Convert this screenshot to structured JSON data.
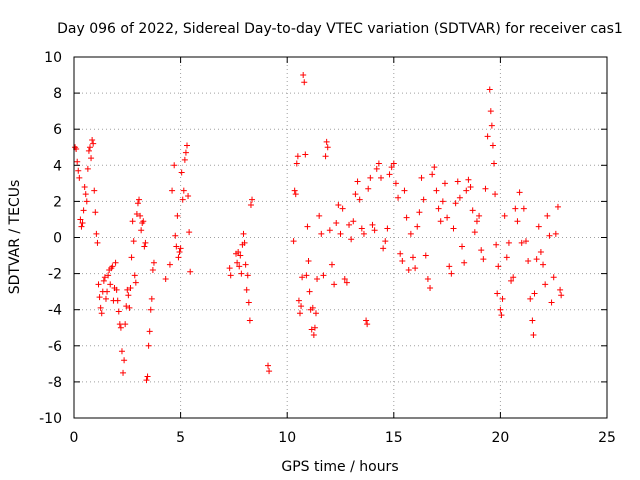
{
  "chart_data": {
    "type": "scatter",
    "title": "Day 096 of 2022, Sidereal Day-to-day VTEC variation (SDTVAR) for receiver cas1",
    "xlabel": "GPS time / hours",
    "ylabel": "SDTVAR / TECUs",
    "xlim": [
      0,
      25
    ],
    "ylim": [
      -10,
      10
    ],
    "xticks": [
      0,
      5,
      10,
      15,
      20,
      25
    ],
    "xtick_labels": [
      "0",
      "5",
      "10",
      "15",
      "20",
      "25"
    ],
    "yticks": [
      -10,
      -8,
      -6,
      -4,
      -2,
      0,
      2,
      4,
      6,
      8,
      10
    ],
    "ytick_labels": [
      "-10",
      "-8",
      "-6",
      "-4",
      "-2",
      "0",
      "2",
      "4",
      "6",
      "8",
      "10"
    ],
    "grid": true,
    "marker": "+",
    "marker_color": "#ff0000",
    "series": [
      {
        "name": "cas1 SDTVAR",
        "points": [
          [
            0.05,
            5.0
          ],
          [
            0.1,
            4.9
          ],
          [
            0.15,
            4.2
          ],
          [
            0.2,
            3.7
          ],
          [
            0.25,
            3.3
          ],
          [
            0.3,
            1.0
          ],
          [
            0.35,
            0.6
          ],
          [
            0.4,
            0.8
          ],
          [
            0.45,
            1.5
          ],
          [
            0.5,
            2.8
          ],
          [
            0.55,
            2.4
          ],
          [
            0.6,
            2.0
          ],
          [
            0.65,
            3.8
          ],
          [
            0.7,
            4.8
          ],
          [
            0.75,
            5.0
          ],
          [
            0.8,
            4.4
          ],
          [
            0.85,
            5.4
          ],
          [
            0.9,
            5.2
          ],
          [
            0.95,
            2.6
          ],
          [
            1.0,
            1.4
          ],
          [
            1.05,
            0.2
          ],
          [
            1.1,
            -0.3
          ],
          [
            1.15,
            -2.6
          ],
          [
            1.2,
            -3.3
          ],
          [
            1.25,
            -3.9
          ],
          [
            1.3,
            -4.2
          ],
          [
            1.35,
            -3.0
          ],
          [
            1.4,
            -2.4
          ],
          [
            1.45,
            -2.2
          ],
          [
            1.5,
            -3.4
          ],
          [
            1.55,
            -3.0
          ],
          [
            1.6,
            -2.1
          ],
          [
            1.65,
            -1.8
          ],
          [
            1.7,
            -2.6
          ],
          [
            1.75,
            -1.7
          ],
          [
            1.8,
            -1.6
          ],
          [
            1.85,
            -3.5
          ],
          [
            1.9,
            -2.8
          ],
          [
            1.95,
            -1.4
          ],
          [
            2.0,
            -2.9
          ],
          [
            2.05,
            -3.5
          ],
          [
            2.1,
            -4.1
          ],
          [
            2.15,
            -4.8
          ],
          [
            2.2,
            -5.0
          ],
          [
            2.25,
            -6.3
          ],
          [
            2.3,
            -7.5
          ],
          [
            2.35,
            -6.8
          ],
          [
            2.4,
            -4.8
          ],
          [
            2.45,
            -3.8
          ],
          [
            2.5,
            -2.9
          ],
          [
            2.55,
            -3.2
          ],
          [
            2.6,
            -3.9
          ],
          [
            2.65,
            -2.8
          ],
          [
            2.7,
            -1.1
          ],
          [
            2.75,
            0.9
          ],
          [
            2.8,
            -0.2
          ],
          [
            2.85,
            -2.1
          ],
          [
            2.9,
            -2.5
          ],
          [
            2.95,
            1.3
          ],
          [
            3.0,
            1.9
          ],
          [
            3.05,
            2.1
          ],
          [
            3.1,
            1.2
          ],
          [
            3.15,
            0.4
          ],
          [
            3.2,
            0.8
          ],
          [
            3.25,
            0.9
          ],
          [
            3.3,
            -0.5
          ],
          [
            3.35,
            -0.3
          ],
          [
            3.4,
            -7.9
          ],
          [
            3.45,
            -7.7
          ],
          [
            3.5,
            -6.0
          ],
          [
            3.55,
            -5.2
          ],
          [
            3.6,
            -4.0
          ],
          [
            3.65,
            -3.4
          ],
          [
            3.7,
            -1.8
          ],
          [
            3.75,
            -1.4
          ],
          [
            4.3,
            -2.3
          ],
          [
            4.5,
            -1.5
          ],
          [
            4.6,
            2.6
          ],
          [
            4.7,
            4.0
          ],
          [
            4.75,
            0.1
          ],
          [
            4.8,
            -0.5
          ],
          [
            4.85,
            1.2
          ],
          [
            4.9,
            -1.1
          ],
          [
            4.95,
            -0.8
          ],
          [
            5.0,
            -0.6
          ],
          [
            5.05,
            3.6
          ],
          [
            5.1,
            2.1
          ],
          [
            5.15,
            2.6
          ],
          [
            5.2,
            4.3
          ],
          [
            5.25,
            4.7
          ],
          [
            5.3,
            5.1
          ],
          [
            5.35,
            2.3
          ],
          [
            5.4,
            0.3
          ],
          [
            5.45,
            -1.9
          ],
          [
            7.3,
            -1.7
          ],
          [
            7.35,
            -2.1
          ],
          [
            7.6,
            -0.9
          ],
          [
            7.65,
            -1.4
          ],
          [
            7.7,
            -0.8
          ],
          [
            7.75,
            -1.6
          ],
          [
            7.8,
            -1.0
          ],
          [
            7.85,
            -2.0
          ],
          [
            7.9,
            -0.4
          ],
          [
            7.95,
            0.2
          ],
          [
            8.0,
            -0.3
          ],
          [
            8.05,
            -1.5
          ],
          [
            8.1,
            -2.9
          ],
          [
            8.15,
            -2.1
          ],
          [
            8.2,
            -3.6
          ],
          [
            8.25,
            -4.6
          ],
          [
            8.3,
            1.8
          ],
          [
            8.35,
            2.1
          ],
          [
            9.1,
            -7.1
          ],
          [
            9.15,
            -7.4
          ],
          [
            10.3,
            -0.2
          ],
          [
            10.35,
            2.6
          ],
          [
            10.4,
            2.4
          ],
          [
            10.45,
            4.1
          ],
          [
            10.5,
            4.5
          ],
          [
            10.55,
            -3.5
          ],
          [
            10.6,
            -4.2
          ],
          [
            10.65,
            -3.8
          ],
          [
            10.7,
            -2.2
          ],
          [
            10.75,
            9.0
          ],
          [
            10.8,
            8.6
          ],
          [
            10.85,
            4.6
          ],
          [
            10.9,
            -2.1
          ],
          [
            10.95,
            0.6
          ],
          [
            11.0,
            -1.3
          ],
          [
            11.05,
            -3.0
          ],
          [
            11.1,
            -4.0
          ],
          [
            11.15,
            -5.1
          ],
          [
            11.2,
            -3.9
          ],
          [
            11.25,
            -5.4
          ],
          [
            11.3,
            -5.0
          ],
          [
            11.35,
            -4.2
          ],
          [
            11.4,
            -2.3
          ],
          [
            11.5,
            1.2
          ],
          [
            11.6,
            0.2
          ],
          [
            11.7,
            -2.1
          ],
          [
            11.8,
            4.5
          ],
          [
            11.85,
            5.3
          ],
          [
            11.9,
            5.0
          ],
          [
            12.0,
            0.4
          ],
          [
            12.1,
            -1.5
          ],
          [
            12.2,
            -2.6
          ],
          [
            12.3,
            0.8
          ],
          [
            12.4,
            1.8
          ],
          [
            12.5,
            0.2
          ],
          [
            12.6,
            1.6
          ],
          [
            12.7,
            -2.3
          ],
          [
            12.8,
            -2.5
          ],
          [
            12.9,
            0.7
          ],
          [
            13.0,
            -0.1
          ],
          [
            13.1,
            0.9
          ],
          [
            13.2,
            2.4
          ],
          [
            13.3,
            3.1
          ],
          [
            13.4,
            2.1
          ],
          [
            13.5,
            0.5
          ],
          [
            13.6,
            0.2
          ],
          [
            13.7,
            -4.6
          ],
          [
            13.75,
            -4.8
          ],
          [
            13.8,
            2.7
          ],
          [
            13.9,
            3.3
          ],
          [
            14.0,
            0.7
          ],
          [
            14.1,
            0.4
          ],
          [
            14.2,
            3.8
          ],
          [
            14.3,
            4.1
          ],
          [
            14.4,
            3.3
          ],
          [
            14.5,
            -0.6
          ],
          [
            14.6,
            -0.2
          ],
          [
            14.7,
            0.5
          ],
          [
            14.8,
            3.5
          ],
          [
            14.9,
            3.9
          ],
          [
            15.0,
            4.1
          ],
          [
            15.1,
            3.0
          ],
          [
            15.2,
            2.2
          ],
          [
            15.3,
            -0.9
          ],
          [
            15.4,
            -1.3
          ],
          [
            15.5,
            2.6
          ],
          [
            15.6,
            1.1
          ],
          [
            15.7,
            -1.8
          ],
          [
            15.8,
            0.2
          ],
          [
            15.9,
            -1.1
          ],
          [
            16.0,
            -1.7
          ],
          [
            16.1,
            0.6
          ],
          [
            16.2,
            1.4
          ],
          [
            16.3,
            3.3
          ],
          [
            16.4,
            2.1
          ],
          [
            16.5,
            -1.0
          ],
          [
            16.6,
            -2.3
          ],
          [
            16.7,
            -2.8
          ],
          [
            16.8,
            3.5
          ],
          [
            16.9,
            3.9
          ],
          [
            17.0,
            2.6
          ],
          [
            17.1,
            1.6
          ],
          [
            17.2,
            0.9
          ],
          [
            17.3,
            2.0
          ],
          [
            17.4,
            3.0
          ],
          [
            17.5,
            1.1
          ],
          [
            17.6,
            -1.6
          ],
          [
            17.7,
            -2.0
          ],
          [
            17.8,
            0.5
          ],
          [
            17.9,
            1.9
          ],
          [
            18.0,
            3.1
          ],
          [
            18.1,
            2.2
          ],
          [
            18.2,
            -0.5
          ],
          [
            18.3,
            -1.4
          ],
          [
            18.4,
            2.6
          ],
          [
            18.5,
            3.2
          ],
          [
            18.6,
            2.8
          ],
          [
            18.7,
            1.5
          ],
          [
            18.8,
            0.3
          ],
          [
            18.9,
            0.9
          ],
          [
            19.0,
            1.2
          ],
          [
            19.1,
            -0.7
          ],
          [
            19.2,
            -1.2
          ],
          [
            19.3,
            2.7
          ],
          [
            19.4,
            5.6
          ],
          [
            19.5,
            8.2
          ],
          [
            19.55,
            7.0
          ],
          [
            19.6,
            6.2
          ],
          [
            19.65,
            5.1
          ],
          [
            19.7,
            4.1
          ],
          [
            19.75,
            2.4
          ],
          [
            19.8,
            -0.4
          ],
          [
            19.85,
            -3.1
          ],
          [
            19.9,
            -1.6
          ],
          [
            20.0,
            -4.0
          ],
          [
            20.05,
            -4.3
          ],
          [
            20.1,
            -3.4
          ],
          [
            20.2,
            1.2
          ],
          [
            20.3,
            -1.1
          ],
          [
            20.4,
            -0.3
          ],
          [
            20.5,
            -2.4
          ],
          [
            20.6,
            -2.2
          ],
          [
            20.7,
            1.6
          ],
          [
            20.8,
            0.9
          ],
          [
            20.9,
            2.5
          ],
          [
            21.0,
            -0.3
          ],
          [
            21.1,
            1.6
          ],
          [
            21.2,
            -0.2
          ],
          [
            21.3,
            -1.3
          ],
          [
            21.4,
            -3.4
          ],
          [
            21.5,
            -4.6
          ],
          [
            21.55,
            -5.4
          ],
          [
            21.6,
            -3.1
          ],
          [
            21.7,
            -1.2
          ],
          [
            21.8,
            0.6
          ],
          [
            21.9,
            -0.8
          ],
          [
            22.0,
            -1.5
          ],
          [
            22.1,
            -2.6
          ],
          [
            22.2,
            1.2
          ],
          [
            22.3,
            0.1
          ],
          [
            22.4,
            -3.6
          ],
          [
            22.5,
            -2.2
          ],
          [
            22.6,
            0.2
          ],
          [
            22.7,
            1.7
          ],
          [
            22.8,
            -2.9
          ],
          [
            22.85,
            -3.2
          ]
        ]
      }
    ]
  }
}
